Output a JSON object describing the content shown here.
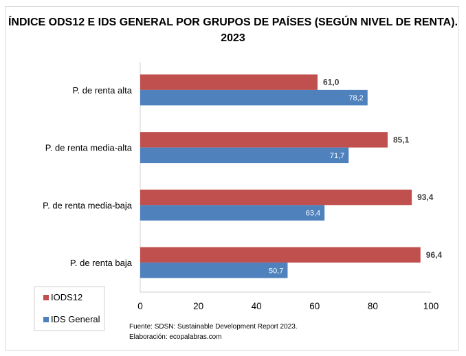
{
  "chart_data": {
    "type": "bar",
    "orientation": "horizontal",
    "title": "ÍNDICE ODS12 E IDS GENERAL POR GRUPOS DE PAÍSES (SEGÚN NIVEL DE RENTA).",
    "title_line2": "2023",
    "categories": [
      "P. de renta alta",
      "P. de renta media-alta",
      "P. de renta media-baja",
      "P. de renta baja"
    ],
    "series": [
      {
        "name": "IODS12",
        "color": "#c0504d",
        "values": [
          61.0,
          85.1,
          93.4,
          96.4
        ],
        "labels": [
          "61,0",
          "85,1",
          "93,4",
          "96,4"
        ]
      },
      {
        "name": "IDS General",
        "color": "#4f81bd",
        "values": [
          78.2,
          71.7,
          63.4,
          50.7
        ],
        "labels": [
          "78,2",
          "71,7",
          "63,4",
          "50,7"
        ]
      }
    ],
    "xlim": [
      0,
      100
    ],
    "xticks": [
      "0",
      "20",
      "40",
      "60",
      "80",
      "100"
    ],
    "grid": false,
    "legend": "bottom-left",
    "source": "Fuente: SDSN: Sustainable Development Report 2023.",
    "credit": "Elaboración: ecopalabras.com"
  }
}
